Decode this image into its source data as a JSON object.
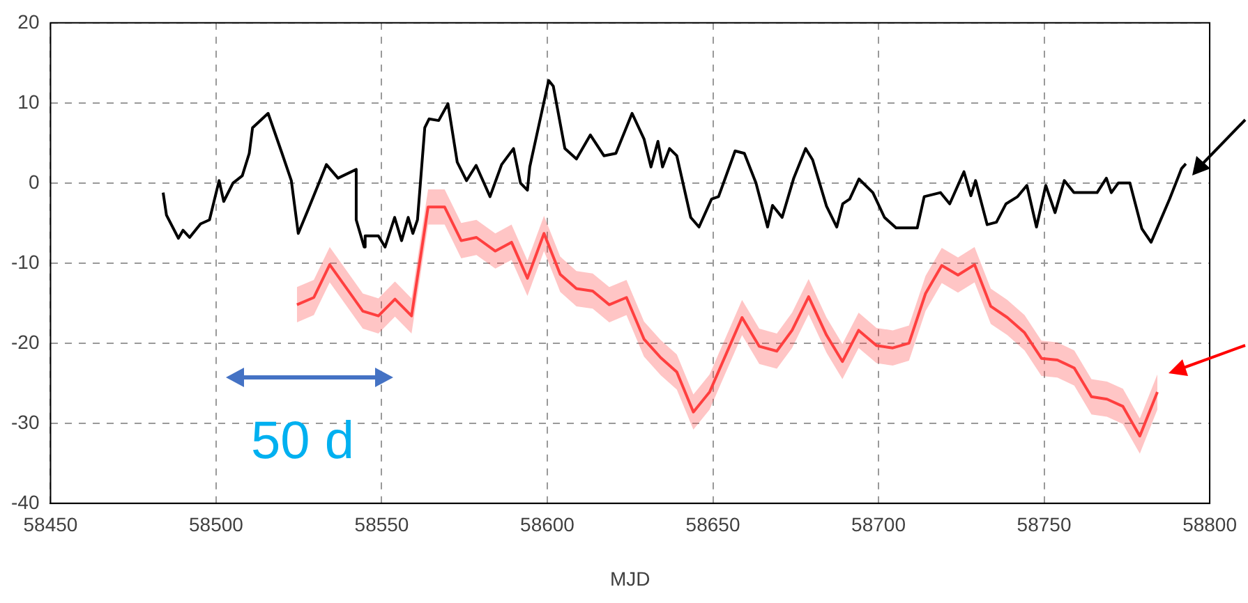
{
  "chart_data": {
    "type": "line",
    "xlabel": "MJD",
    "xlim": [
      58450,
      58800
    ],
    "xticks": [
      58450,
      58500,
      58550,
      58600,
      58650,
      58700,
      58750,
      58800
    ],
    "ylim": [
      -40,
      20
    ],
    "yticks": [
      -40,
      -30,
      -20,
      -10,
      0,
      10,
      20
    ],
    "grid": true,
    "legend": false,
    "marker": "none",
    "line_style": "solid",
    "annotations": [
      "50 d"
    ],
    "series": [
      {
        "color": "#000000",
        "x": [
          58484,
          58485,
          58488.6,
          58490,
          58492,
          58495.3,
          58498,
          58500.9,
          58502.3,
          58505.1,
          58507.9,
          58510,
          58511,
          58515.7,
          58519.9,
          58522.7,
          58524.8,
          58527.7,
          58533.3,
          58536.8,
          58542.3,
          58542.3,
          58544.7,
          58545,
          58549,
          58551,
          58553.9,
          58556,
          58558,
          58559.4,
          58560.8,
          58563,
          58564.3,
          58567.2,
          58570,
          58572.8,
          58575.6,
          58578.5,
          58582.7,
          58586.2,
          58589.8,
          58591.9,
          58594,
          58594.7,
          58600.4,
          58601.8,
          58605.3,
          58608.8,
          58613,
          58617.1,
          58620.7,
          58625.6,
          58629.2,
          58631.3,
          58633.4,
          58634.8,
          58636.9,
          58639.1,
          58643.3,
          58645.8,
          58649.6,
          58651.7,
          58656.7,
          58659.5,
          58663,
          58666.5,
          58668,
          58670.9,
          58674.4,
          58678,
          58680.1,
          58684.3,
          58687.4,
          58689.2,
          58691.3,
          58694.1,
          58698.3,
          58701.8,
          58705.3,
          58711.7,
          58713.8,
          58718.7,
          58721.5,
          58725.8,
          58727.9,
          58729.3,
          58732.8,
          58735.6,
          58738.5,
          58742,
          58744.8,
          58747.7,
          58750.5,
          58753.3,
          58756.1,
          58759,
          58766,
          58768.8,
          58770.3,
          58772.4,
          58775.9,
          58779.5,
          58782.3,
          58787.9,
          58791.5,
          58792.8
        ],
        "values": [
          -1.2,
          -4.0,
          -6.9,
          -5.9,
          -6.8,
          -5.1,
          -4.6,
          0.3,
          -2.3,
          0,
          0.9,
          3.7,
          6.9,
          8.7,
          3.7,
          0.3,
          -6.3,
          -3.4,
          2.3,
          0.6,
          1.7,
          -4.6,
          -8.0,
          -6.6,
          -6.6,
          -8.0,
          -4.3,
          -7.2,
          -4.3,
          -6.3,
          -4.6,
          6.9,
          8.0,
          7.8,
          9.9,
          2.6,
          0.3,
          2.2,
          -1.7,
          2.3,
          4.3,
          0,
          -0.9,
          2.0,
          12.8,
          12.1,
          4.3,
          3.0,
          6.0,
          3.4,
          3.7,
          8.7,
          5.5,
          2.0,
          5.2,
          2.0,
          4.3,
          3.4,
          -4.3,
          -5.5,
          -2.0,
          -1.7,
          4.0,
          3.7,
          0,
          -5.5,
          -2.8,
          -4.3,
          0.6,
          4.3,
          2.9,
          -2.9,
          -5.5,
          -2.6,
          -2.0,
          0.5,
          -1.2,
          -4.3,
          -5.6,
          -5.6,
          -1.7,
          -1.2,
          -2.6,
          1.4,
          -1.6,
          0.3,
          -5.2,
          -4.9,
          -2.6,
          -1.7,
          -0.3,
          -5.5,
          -0.3,
          -3.7,
          0.3,
          -1.2,
          -1.2,
          0.6,
          -1.2,
          0,
          0,
          -5.7,
          -7.4,
          -2.0,
          1.8,
          2.4
        ]
      },
      {
        "color": "#ff4040",
        "x": [
          58524.4,
          58529.5,
          58534.3,
          58544.3,
          58549,
          58554,
          58559,
          58564,
          58569,
          58574,
          58578.6,
          58584.3,
          58589.2,
          58594,
          58599,
          58603.9,
          58608.8,
          58613.7,
          58618.7,
          58623.9,
          58629.2,
          58634.2,
          58639.1,
          58644.1,
          58649,
          58658.8,
          58664,
          58669.3,
          58673.9,
          58678.9,
          58684.3,
          58689.1,
          58694,
          58699.4,
          58704.3,
          58709.2,
          58714.2,
          58719.1,
          58724,
          58729,
          58733.9,
          58738.9,
          58744.1,
          58749.2,
          58754,
          58759.1,
          58764.3,
          58769,
          58773.8,
          58778.9,
          58784.2
        ],
        "values": [
          -15.2,
          -14.3,
          -10.2,
          -16,
          -16.6,
          -14.5,
          -16.6,
          -3.0,
          -3.0,
          -7.2,
          -6.8,
          -8.5,
          -7.4,
          -11.9,
          -6.3,
          -11.4,
          -13.2,
          -13.5,
          -15.2,
          -14.3,
          -19.5,
          -21.8,
          -23.6,
          -28.6,
          -26.1,
          -16.8,
          -20.4,
          -21,
          -18.4,
          -14.2,
          -19.0,
          -22.3,
          -18.4,
          -20.3,
          -20.6,
          -20,
          -13.8,
          -10.3,
          -11.5,
          -10.2,
          -15.4,
          -16.8,
          -18.7,
          -21.9,
          -22.1,
          -23.1,
          -26.7,
          -27,
          -27.9,
          -31.6,
          -26.1
        ],
        "lower": [
          -17.4,
          -16.5,
          -12.4,
          -18.2,
          -18.8,
          -16.7,
          -18.8,
          -5.2,
          -5.2,
          -9.4,
          -9.0,
          -10.7,
          -9.6,
          -14.1,
          -8.5,
          -13.6,
          -15.4,
          -15.7,
          -17.4,
          -16.5,
          -21.7,
          -24.0,
          -25.8,
          -30.8,
          -28.3,
          -19.0,
          -22.6,
          -23.2,
          -20.6,
          -16.4,
          -21.2,
          -24.5,
          -20.6,
          -22.5,
          -22.8,
          -22.2,
          -16.0,
          -12.5,
          -13.7,
          -12.4,
          -17.6,
          -19.0,
          -20.9,
          -24.1,
          -24.3,
          -25.3,
          -28.9,
          -29.2,
          -30.1,
          -33.8,
          -28.3
        ],
        "upper": [
          -13.0,
          -12.1,
          -8.0,
          -13.8,
          -14.4,
          -12.3,
          -14.4,
          -0.8,
          -0.8,
          -5.0,
          -4.6,
          -6.3,
          -5.2,
          -9.7,
          -4.1,
          -9.2,
          -11.0,
          -11.3,
          -13.0,
          -12.1,
          -17.3,
          -19.6,
          -21.4,
          -26.4,
          -23.9,
          -14.6,
          -18.2,
          -18.8,
          -16.2,
          -12.0,
          -16.8,
          -20.1,
          -16.2,
          -18.1,
          -18.4,
          -17.8,
          -11.6,
          -8.1,
          -9.3,
          -8.0,
          -13.2,
          -14.6,
          -16.5,
          -19.7,
          -19.9,
          -20.9,
          -24.5,
          -24.8,
          -25.7,
          -29.4,
          -23.9
        ]
      }
    ]
  }
}
